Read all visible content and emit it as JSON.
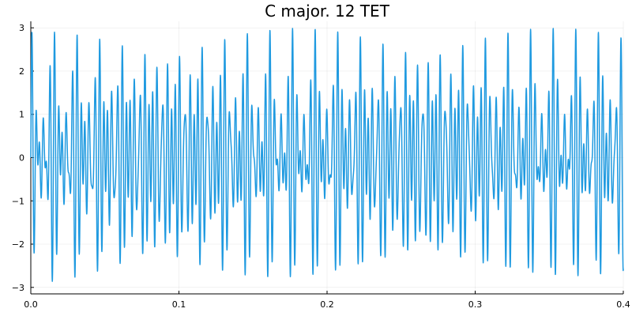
{
  "chart_data": {
    "type": "line",
    "title": "C major. 12 TET",
    "xlabel": "",
    "ylabel": "",
    "xlim": [
      0,
      0.4
    ],
    "ylim": [
      -3.15,
      3.15
    ],
    "xticks": [
      0,
      0.1,
      0.2,
      0.3,
      0.4
    ],
    "xtick_labels": [
      "0.0",
      "0.1",
      "0.2",
      "0.3",
      "0.4"
    ],
    "yticks": [
      -3,
      -2,
      -1,
      0,
      1,
      2,
      3
    ],
    "ytick_labels": [
      "−3",
      "−2",
      "−1",
      "0",
      "1",
      "2",
      "3"
    ],
    "grid": true,
    "legend": "none",
    "series": [
      {
        "color": "#1f9ae0",
        "frequencies_hz": [
          261.626,
          329.628,
          391.995
        ],
        "function": "sin(2π·261.626·t) + sin(2π·329.628·t) + sin(2π·391.995·t)",
        "t_start": 0,
        "t_end": 0.4
      }
    ]
  }
}
